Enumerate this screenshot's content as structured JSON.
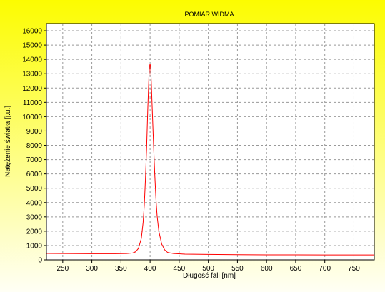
{
  "chart_data": {
    "type": "line",
    "title": "POMIAR WIDMA",
    "xlabel": "Długość fali [nm]",
    "ylabel": "Natężenie światła [j.u.]",
    "xlim": [
      222,
      785
    ],
    "ylim": [
      0,
      16500
    ],
    "xticks": [
      250,
      300,
      350,
      400,
      450,
      500,
      550,
      600,
      650,
      700,
      750
    ],
    "yticks": [
      0,
      1000,
      2000,
      3000,
      4000,
      5000,
      6000,
      7000,
      8000,
      9000,
      10000,
      11000,
      12000,
      13000,
      14000,
      15000,
      16000
    ],
    "grid": true,
    "series": [
      {
        "x": [
          222,
          250,
          300,
          340,
          360,
          370,
          375,
          380,
          385,
          388,
          390,
          392,
          394,
          396,
          398,
          399,
          400,
          401,
          402,
          404,
          406,
          408,
          410,
          412,
          415,
          420,
          425,
          430,
          440,
          460,
          500,
          550,
          600,
          650,
          700,
          750,
          785
        ],
        "values": [
          450,
          440,
          430,
          430,
          440,
          480,
          560,
          800,
          1500,
          2600,
          3800,
          5600,
          7800,
          10500,
          12800,
          13500,
          13700,
          13400,
          12500,
          10200,
          8000,
          6000,
          4300,
          3100,
          2000,
          1100,
          700,
          520,
          440,
          400,
          380,
          360,
          350,
          350,
          340,
          340,
          340
        ]
      }
    ],
    "colors": {
      "background_top": "#fcfc00",
      "background_bottom": "#fffff5",
      "plot_background": "#ffffff",
      "grid": "#999999",
      "line": "#ff0000",
      "axis": "#000000"
    }
  }
}
